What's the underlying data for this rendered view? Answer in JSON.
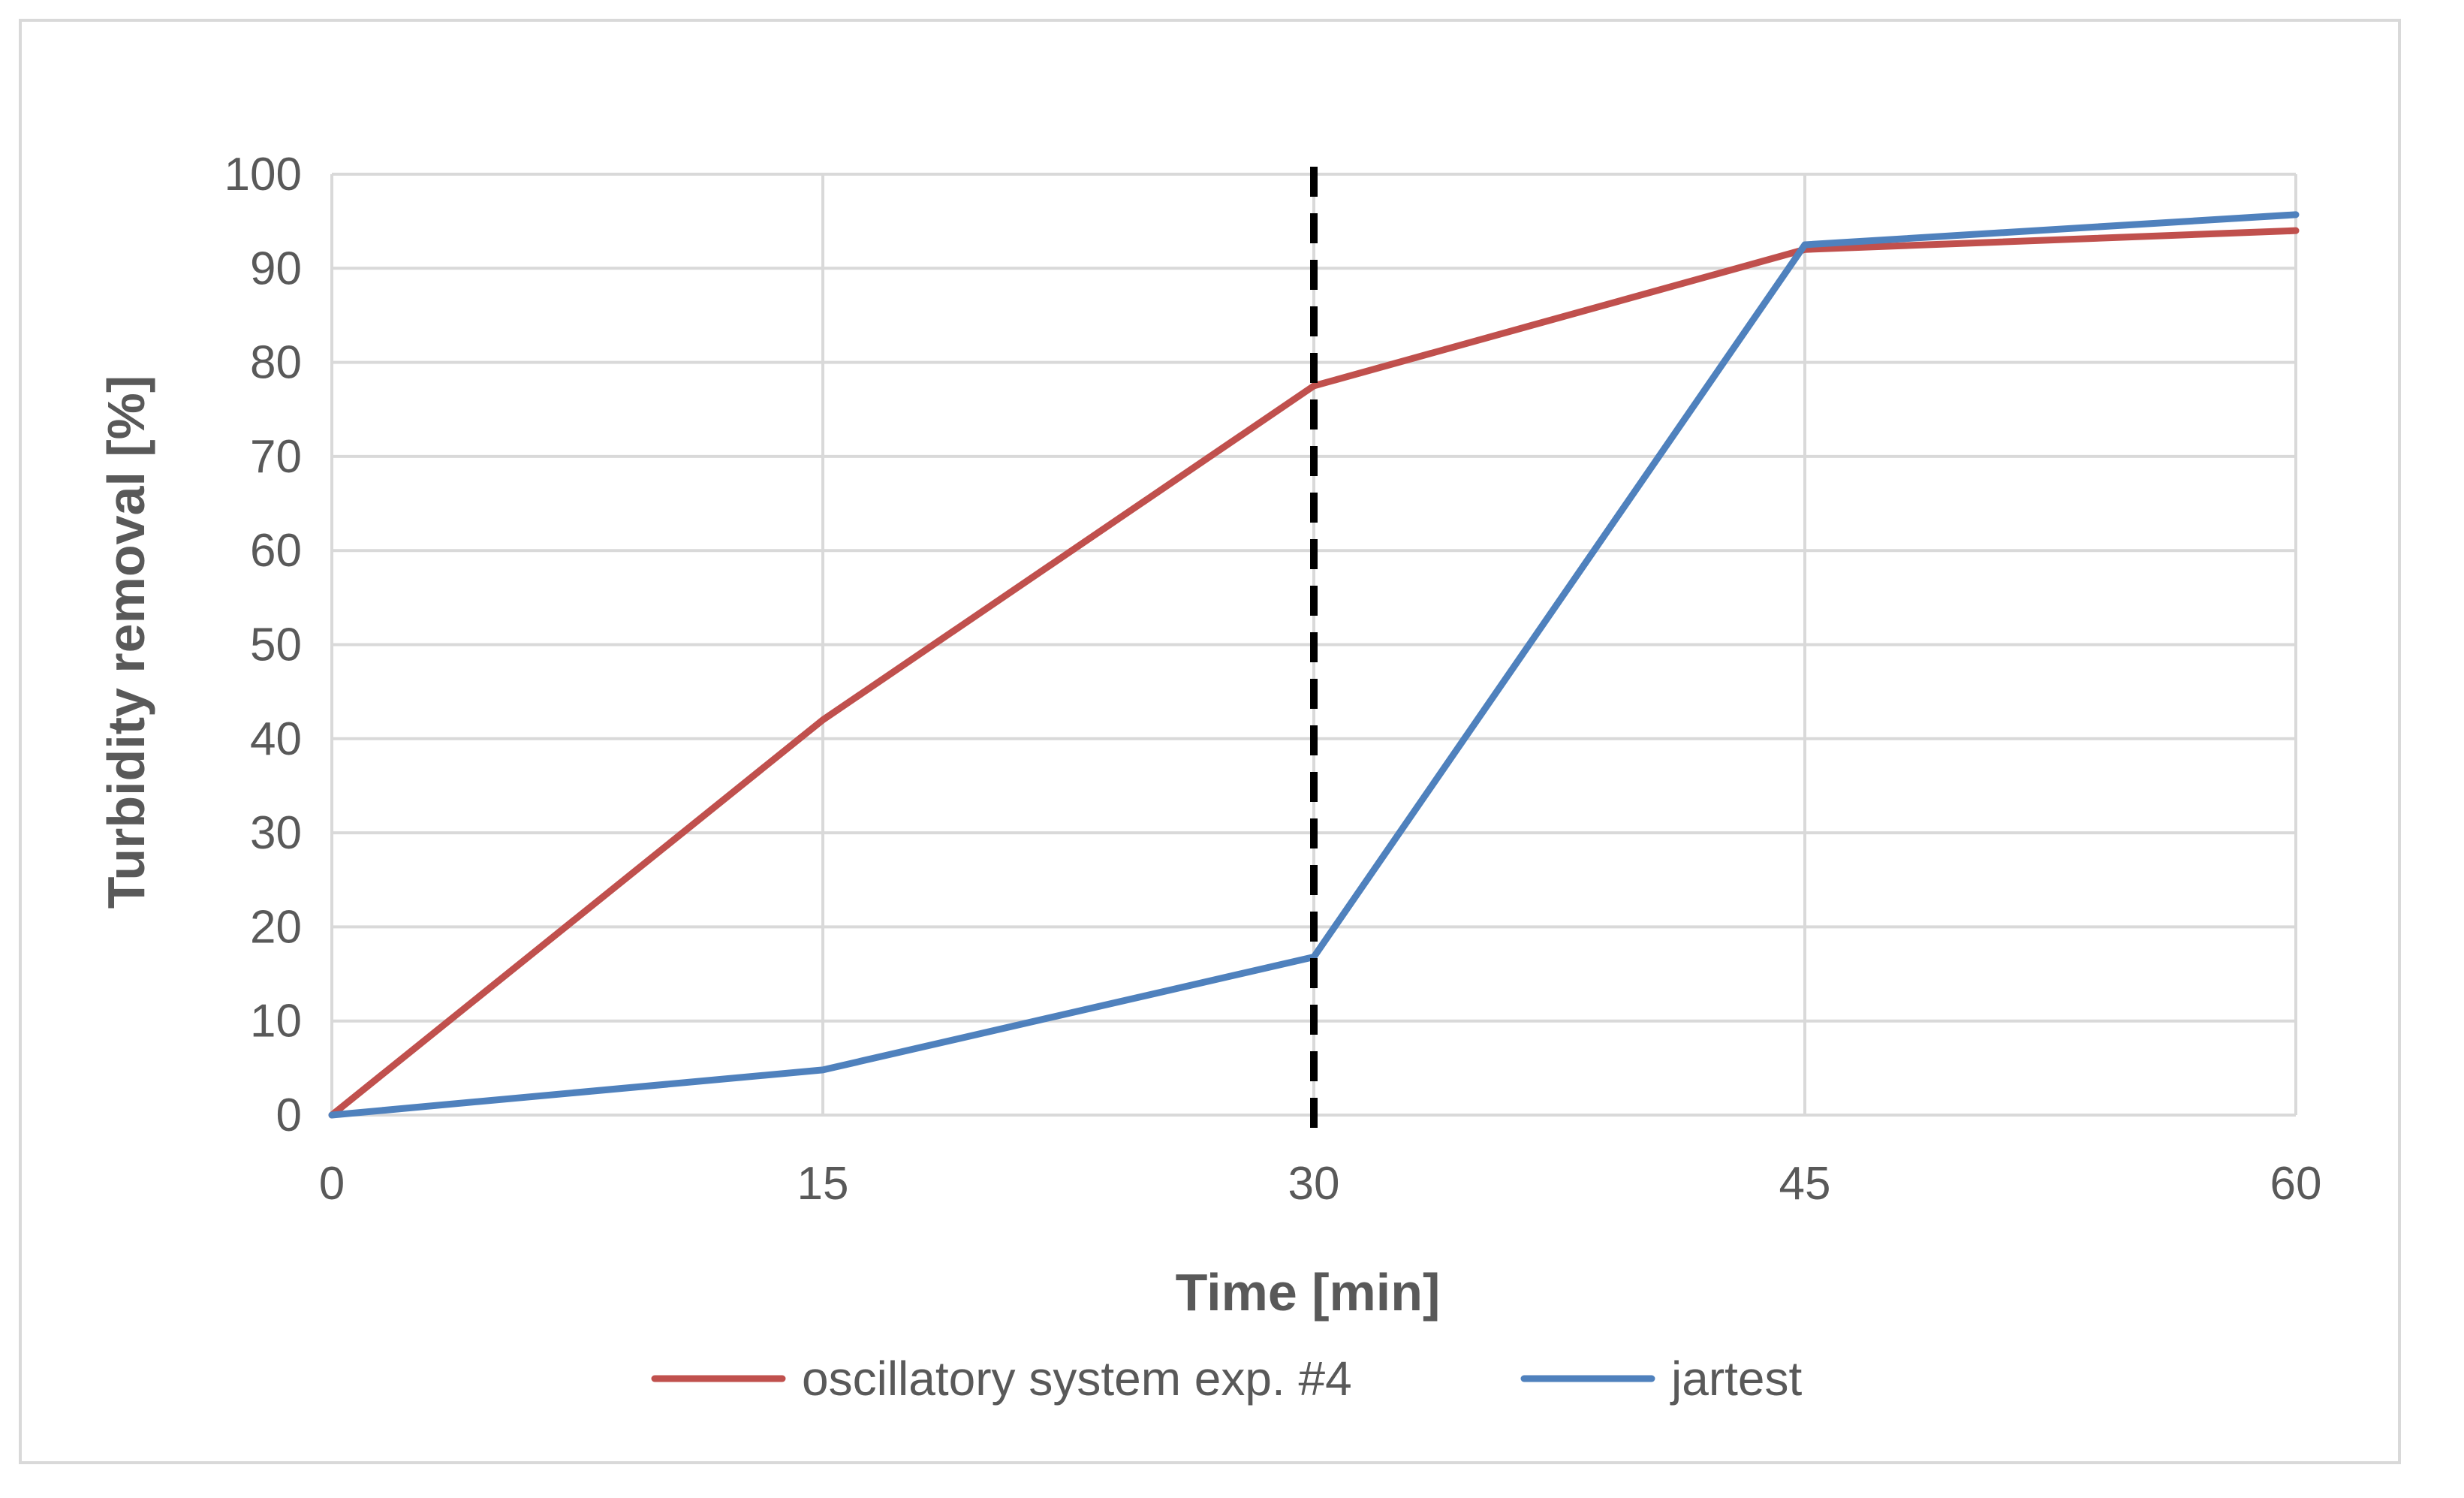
{
  "chart_data": {
    "type": "line",
    "title": "",
    "xlabel": "Time [min]",
    "ylabel": "Turbidity removal [%]",
    "x": [
      0,
      15,
      30,
      45,
      60
    ],
    "xlim": [
      0,
      60
    ],
    "ylim": [
      0,
      100
    ],
    "x_ticks": [
      0,
      15,
      30,
      45,
      60
    ],
    "y_ticks": [
      0,
      10,
      20,
      30,
      40,
      50,
      60,
      70,
      80,
      90,
      100
    ],
    "grid": true,
    "legend_position": "bottom",
    "series": [
      {
        "name": "oscillatory system exp. #4",
        "color": "#c0504d",
        "values": [
          0,
          42,
          77.5,
          92,
          94
        ]
      },
      {
        "name": "jartest",
        "color": "#4f81bd",
        "values": [
          0,
          4.8,
          16.8,
          92.5,
          95.7
        ]
      }
    ],
    "annotations": [
      {
        "type": "vertical-dashed-line",
        "x": 30,
        "color": "#000000"
      }
    ]
  }
}
